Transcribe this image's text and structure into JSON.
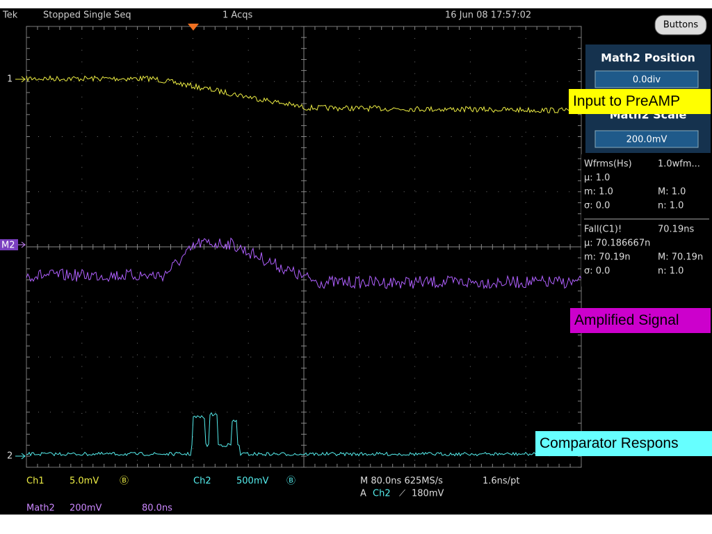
{
  "status": {
    "brand": "Tek",
    "state": "Stopped",
    "mode": "Single Seq",
    "acqs": "1 Acqs",
    "datetime": "16 Jun 08 17:57:02"
  },
  "button": "Buttons",
  "panel": {
    "position_title": "Math2 Position",
    "position_value": "0.0div",
    "scale_title": "Math2 Scale",
    "scale_value": "200.0mV"
  },
  "measurements": {
    "wfms": [
      [
        "Wfrms(Hs)",
        "1.0wfm..."
      ],
      [
        "µ: 1.0",
        ""
      ],
      [
        "m: 1.0",
        "M: 1.0"
      ],
      [
        "σ: 0.0",
        "n: 1.0"
      ]
    ],
    "fall": [
      [
        "Fall(C1)!",
        "70.19ns"
      ],
      [
        "µ: 70.186667n",
        ""
      ],
      [
        "m: 70.19n",
        "M: 70.19n"
      ],
      [
        "σ: 0.0",
        "n: 1.0"
      ]
    ]
  },
  "markers": {
    "ch1": "1",
    "math2": "M2",
    "ch2": "2"
  },
  "footer": {
    "ch1": "Ch1",
    "ch1_scale": "5.0mV",
    "ch1_bw": "Ⓑ",
    "ch2": "Ch2",
    "ch2_scale": "500mV",
    "ch2_bw": "Ⓑ",
    "timebase": "M 80.0ns 625MS/s",
    "resolution": "1.6ns/pt",
    "trigger_source": "A",
    "trigger_channel": "Ch2",
    "trigger_slope": "⟋",
    "trigger_level": "180mV",
    "math2": "Math2",
    "math2_scale": "200mV",
    "math2_time": "80.0ns"
  },
  "annotations": {
    "input": "Input to PreAMP",
    "amplified": "Amplified Signal",
    "comparator": "Comparator Respons"
  }
}
